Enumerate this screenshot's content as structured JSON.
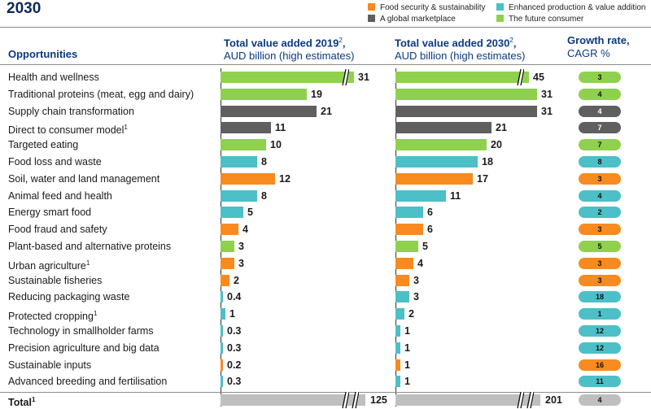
{
  "title": "2030",
  "legend": [
    {
      "name": "Food security & sustainability",
      "color": "#f78b1f"
    },
    {
      "name": "Enhanced production & value addition",
      "color": "#4dbfc7"
    },
    {
      "name": "A global marketplace",
      "color": "#5f5f5f"
    },
    {
      "name": "The future consumer",
      "color": "#8fd14f"
    }
  ],
  "headers": {
    "opportunities": "Opportunities",
    "col2019_bold": "Total value added 2019",
    "col2019_sup": "2",
    "col2019_tail": ",",
    "col2019_sub": "AUD billion (high estimates)",
    "col2030_bold": "Total value added 2030",
    "col2030_sup": "2",
    "col2030_tail": ",",
    "col2030_sub": "AUD billion (high estimates)",
    "growth_bold": "Growth rate,",
    "growth_sub": "CAGR %"
  },
  "chart_data": {
    "type": "bar",
    "orientation": "horizontal",
    "title": "2030",
    "categories": [
      "Health and wellness",
      "Traditional proteins (meat, egg and dairy)",
      "Supply chain transformation",
      "Direct to consumer model",
      "Targeted eating",
      "Food loss and waste",
      "Soil, water and land management",
      "Animal feed and health",
      "Energy smart food",
      "Food fraud and safety",
      "Plant-based and alternative proteins",
      "Urban agriculture",
      "Sustainable fisheries",
      "Reducing packaging waste",
      "Protected cropping",
      "Technology in smallholder farms",
      "Precision agriculture and big data",
      "Sustainable inputs",
      "Advanced breeding and fertilisation"
    ],
    "footnotes": [
      "",
      "",
      "",
      "1",
      "",
      "",
      "",
      "",
      "",
      "",
      "",
      "1",
      "",
      "",
      "1",
      "",
      "",
      "",
      ""
    ],
    "groups": [
      "The future consumer",
      "The future consumer",
      "A global marketplace",
      "A global marketplace",
      "The future consumer",
      "Enhanced production & value addition",
      "Food security & sustainability",
      "Enhanced production & value addition",
      "Enhanced production & value addition",
      "Food security & sustainability",
      "The future consumer",
      "Food security & sustainability",
      "Food security & sustainability",
      "Enhanced production & value addition",
      "Enhanced production & value addition",
      "Enhanced production & value addition",
      "Enhanced production & value addition",
      "Food security & sustainability",
      "Enhanced production & value addition"
    ],
    "series": [
      {
        "name": "Total value added 2019",
        "values": [
          "31",
          "19",
          "21",
          "11",
          "10",
          "8",
          "12",
          "8",
          "5",
          "4",
          "3",
          "3",
          "2",
          "0.4",
          "1",
          "0.3",
          "0.3",
          "0.2",
          "0.3"
        ]
      },
      {
        "name": "Total value added 2030",
        "values": [
          "45",
          "31",
          "31",
          "21",
          "20",
          "18",
          "17",
          "11",
          "6",
          "6",
          "5",
          "4",
          "3",
          "3",
          "2",
          "1",
          "1",
          "1",
          "1"
        ]
      },
      {
        "name": "Growth rate, CAGR %",
        "values": [
          "3",
          "4",
          "4",
          "7",
          "7",
          "8",
          "3",
          "4",
          "2",
          "3",
          "5",
          "3",
          "3",
          "18",
          "1",
          "12",
          "12",
          "16",
          "11"
        ]
      }
    ],
    "broken_bars_2019": [
      0
    ],
    "broken_bars_2030": [
      0
    ],
    "total": {
      "label": "Total",
      "footnote": "1",
      "v2019": "125",
      "v2030": "201",
      "cagr": "4",
      "color": "#bfbfbf"
    }
  }
}
